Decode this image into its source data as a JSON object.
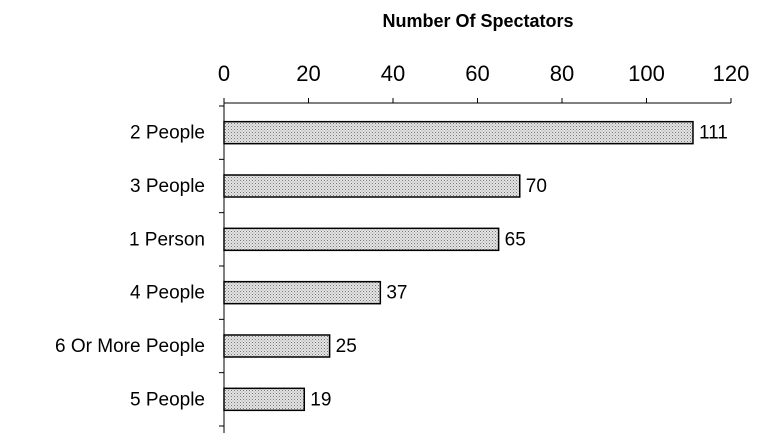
{
  "chart_data": {
    "type": "bar",
    "orientation": "horizontal",
    "title": "Number Of Spectators",
    "categories": [
      "2 People",
      "3 People",
      "1 Person",
      "4 People",
      "6 Or More People",
      "5 People"
    ],
    "values": [
      111,
      70,
      65,
      37,
      25,
      19
    ],
    "color": "#c8c8c8",
    "xlim": [
      0,
      120
    ],
    "xticks": [
      0,
      20,
      40,
      60,
      80,
      100,
      120
    ]
  }
}
